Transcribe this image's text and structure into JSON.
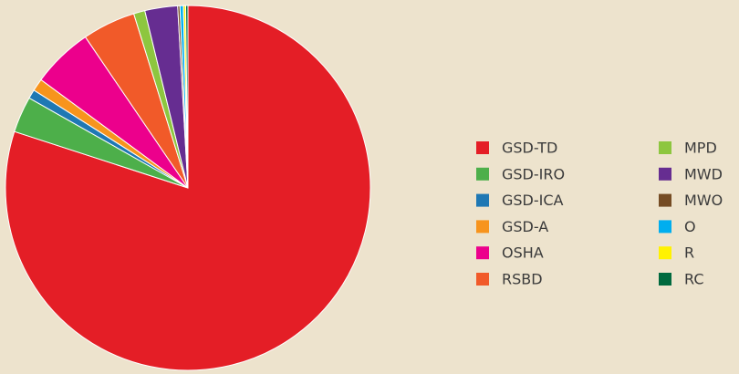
{
  "chart_data": {
    "type": "pie",
    "categories": [
      "GSD-TD",
      "GSD-IRO",
      "GSD-ICA",
      "GSD-A",
      "OSHA",
      "RSBD",
      "MPD",
      "MWD",
      "MWO",
      "O",
      "R",
      "RC"
    ],
    "values": [
      80,
      3.2,
      0.8,
      1.1,
      5.4,
      4.7,
      1,
      2.9,
      0.2,
      0.3,
      0.2,
      0.2
    ],
    "colors": [
      "#e41e26",
      "#4daf4a",
      "#1f78b4",
      "#f7941d",
      "#ec008c",
      "#f15a29",
      "#8dc63f",
      "#662d91",
      "#754c24",
      "#00aeef",
      "#fff200",
      "#00693e"
    ]
  }
}
